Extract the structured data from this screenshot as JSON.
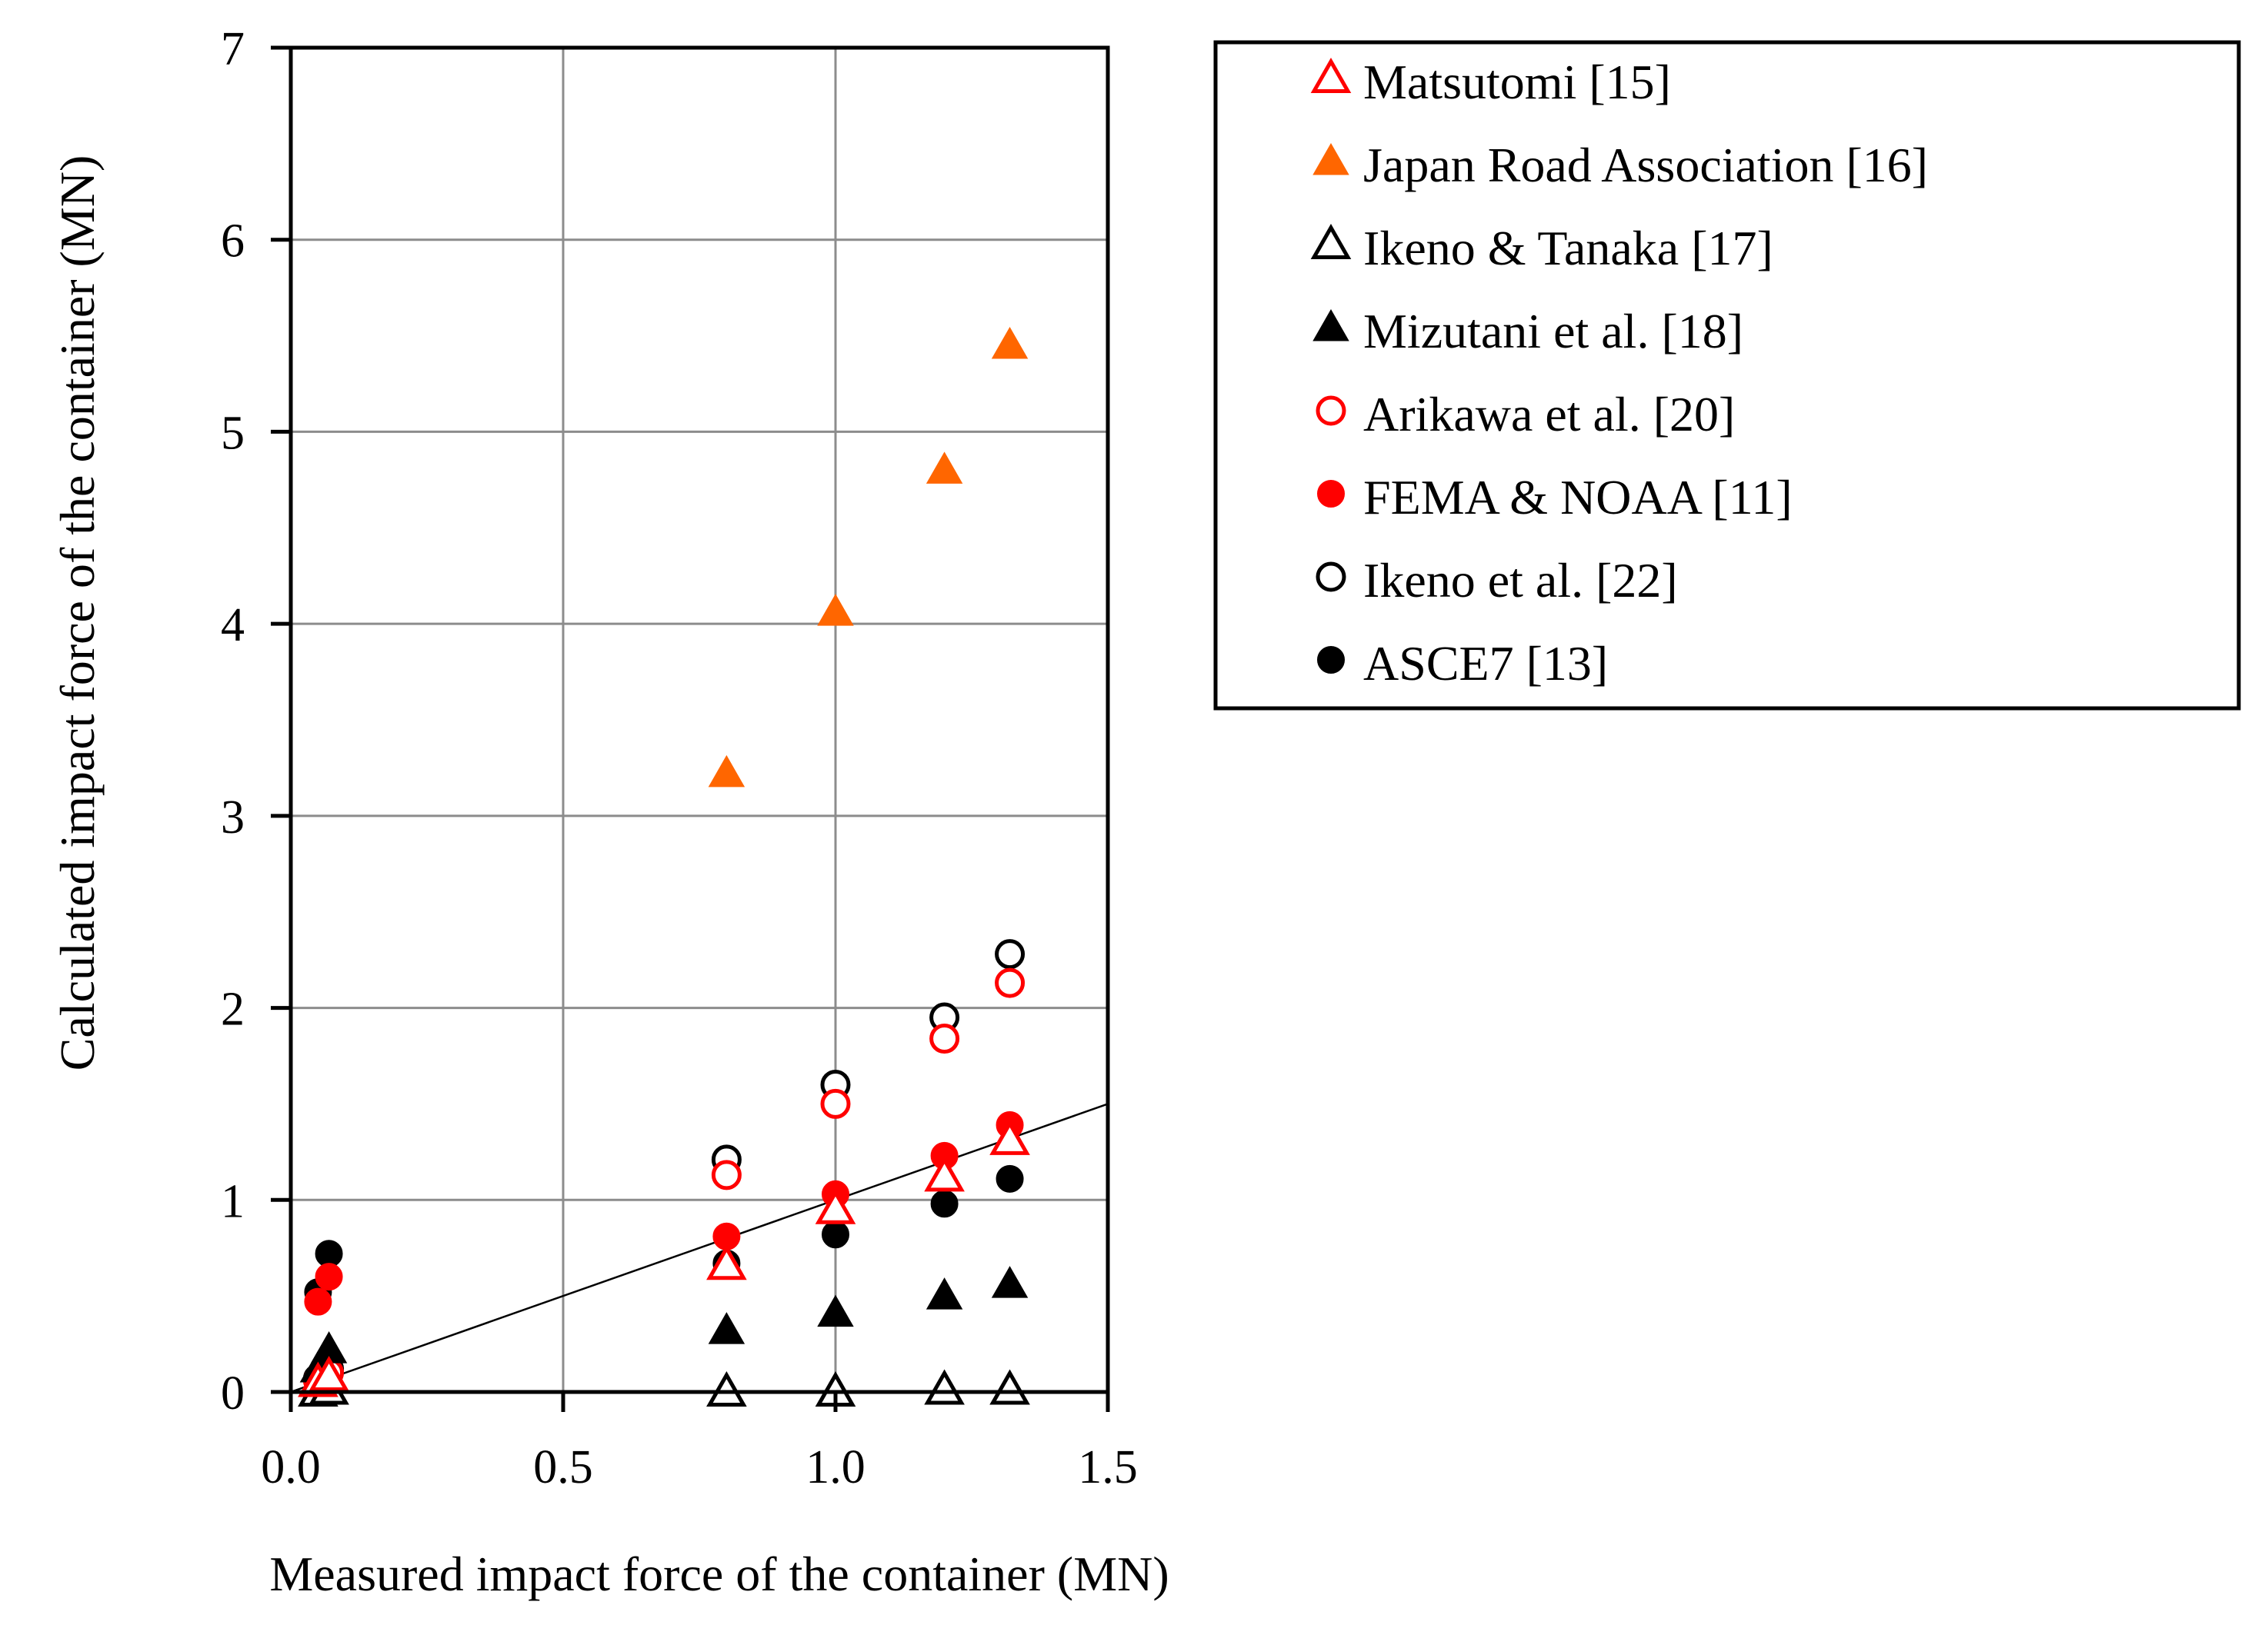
{
  "chart_data": {
    "type": "scatter",
    "title": "",
    "xlabel": "Measured impact force of the container (MN)",
    "ylabel": "Calculated impact force of the container (MN)",
    "xlim": [
      0,
      1.5
    ],
    "ylim": [
      0,
      7
    ],
    "xticks": [
      "0.0",
      "0.5",
      "1.0",
      "1.5"
    ],
    "yticks": [
      "0",
      "1",
      "2",
      "3",
      "4",
      "5",
      "6",
      "7"
    ],
    "grid": true,
    "legend_position": "right",
    "reference_line": {
      "label": "y = x",
      "x": [
        0,
        1.5
      ],
      "y": [
        0,
        1.5
      ]
    },
    "series": [
      {
        "name": "Matsutomi [15]",
        "marker": "triangle-open",
        "color": "#ff0000",
        "points": [
          [
            0.05,
            0.05
          ],
          [
            0.07,
            0.08
          ],
          [
            0.8,
            0.66
          ],
          [
            1.0,
            0.95
          ],
          [
            1.2,
            1.12
          ],
          [
            1.32,
            1.31
          ]
        ]
      },
      {
        "name": "Japan Road Association [16]",
        "marker": "triangle-filled",
        "color": "#ff6600",
        "points": [
          [
            0.8,
            3.22
          ],
          [
            1.0,
            4.06
          ],
          [
            1.2,
            4.8
          ],
          [
            1.32,
            5.45
          ]
        ]
      },
      {
        "name": "Ikeno & Tanaka [17]",
        "marker": "triangle-open",
        "color": "#000000",
        "points": [
          [
            0.05,
            0.0
          ],
          [
            0.07,
            0.01
          ],
          [
            0.8,
            0.0
          ],
          [
            1.0,
            0.0
          ],
          [
            1.2,
            0.01
          ],
          [
            1.32,
            0.01
          ]
        ]
      },
      {
        "name": "Mizutani et al. [18]",
        "marker": "triangle-filled",
        "color": "#000000",
        "points": [
          [
            0.05,
            0.12
          ],
          [
            0.07,
            0.22
          ],
          [
            0.8,
            0.32
          ],
          [
            1.0,
            0.41
          ],
          [
            1.2,
            0.5
          ],
          [
            1.32,
            0.56
          ]
        ]
      },
      {
        "name": "Arikawa et al. [20]",
        "marker": "circle-open",
        "color": "#ff0000",
        "points": [
          [
            0.05,
            0.06
          ],
          [
            0.07,
            0.1
          ],
          [
            0.8,
            1.13
          ],
          [
            1.0,
            1.5
          ],
          [
            1.2,
            1.84
          ],
          [
            1.32,
            2.13
          ]
        ]
      },
      {
        "name": "FEMA & NOAA [11]",
        "marker": "circle-filled",
        "color": "#ff0000",
        "points": [
          [
            0.05,
            0.47
          ],
          [
            0.07,
            0.6
          ],
          [
            0.8,
            0.81
          ],
          [
            1.0,
            1.03
          ],
          [
            1.2,
            1.23
          ],
          [
            1.32,
            1.39
          ]
        ]
      },
      {
        "name": "Ikeno et al. [22]",
        "marker": "circle-open",
        "color": "#000000",
        "points": [
          [
            0.05,
            0.07
          ],
          [
            0.07,
            0.12
          ],
          [
            0.8,
            1.21
          ],
          [
            1.0,
            1.6
          ],
          [
            1.2,
            1.95
          ],
          [
            1.32,
            2.28
          ]
        ]
      },
      {
        "name": "ASCE7 [13]",
        "marker": "circle-filled",
        "color": "#000000",
        "points": [
          [
            0.05,
            0.52
          ],
          [
            0.07,
            0.72
          ],
          [
            0.8,
            0.67
          ],
          [
            1.0,
            0.82
          ],
          [
            1.2,
            0.98
          ],
          [
            1.32,
            1.11
          ]
        ]
      }
    ]
  }
}
